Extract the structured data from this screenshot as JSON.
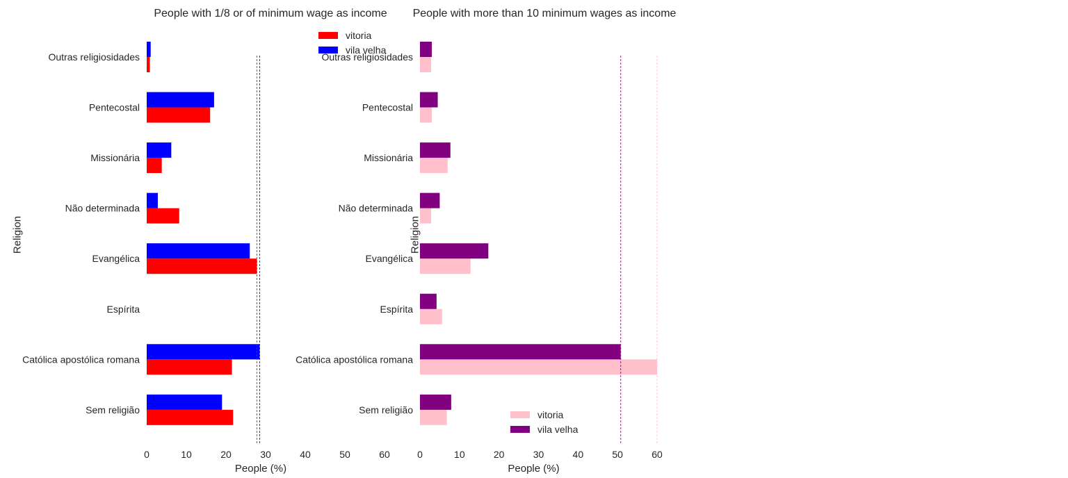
{
  "chart_data": [
    {
      "type": "bar",
      "orientation": "horizontal",
      "title": "People with 1/8 or of minimum wage as income",
      "xlabel": "People (%)",
      "ylabel": "Religion",
      "xlim": [
        0,
        60
      ],
      "xticks": [
        "0",
        "10",
        "20",
        "30",
        "40",
        "50",
        "60"
      ],
      "grid": false,
      "legend_position": "top-right",
      "categories": [
        "Outras religiosidades",
        "Pentecostal",
        "Missionária",
        "Não determinada",
        "Evangélica",
        "Espírita",
        "Católica apostólica romana",
        "Sem religião"
      ],
      "series": [
        {
          "name": "vitoria",
          "color": "#ff0000",
          "values": [
            0.8,
            16,
            3.8,
            8.2,
            27.8,
            0,
            21.5,
            21.8
          ]
        },
        {
          "name": "vila velha",
          "color": "#0000ff",
          "values": [
            1.0,
            17,
            6.2,
            2.8,
            26,
            0,
            28.5,
            19
          ]
        }
      ],
      "reference_lines": [
        {
          "series": "vitoria",
          "value": 27.8,
          "color": "#ff0000"
        },
        {
          "series": "vila velha",
          "value": 28.5,
          "color": "#0000ff"
        }
      ]
    },
    {
      "type": "bar",
      "orientation": "horizontal",
      "title": "People with more than 10 minimum wages as income",
      "xlabel": "People (%)",
      "ylabel": "Religion",
      "xlim": [
        0,
        60
      ],
      "xticks": [
        "0",
        "10",
        "20",
        "30",
        "40",
        "50",
        "60"
      ],
      "grid": false,
      "legend_position": "bottom-center",
      "categories": [
        "Outras religiosidades",
        "Pentecostal",
        "Missionária",
        "Não determinada",
        "Evangélica",
        "Espírita",
        "Católica apostólica romana",
        "Sem religião"
      ],
      "series": [
        {
          "name": "vitoria",
          "color": "#ffc0cb",
          "values": [
            2.8,
            3.0,
            7.0,
            2.8,
            12.8,
            5.6,
            60,
            6.8
          ]
        },
        {
          "name": "vila velha",
          "color": "#800080",
          "values": [
            3.0,
            4.5,
            7.7,
            5.0,
            17.3,
            4.2,
            50.8,
            7.9
          ]
        }
      ],
      "reference_lines": [
        {
          "series": "vitoria",
          "value": 60,
          "color": "#ffc0cb"
        },
        {
          "series": "vila velha",
          "value": 50.8,
          "color": "#800080"
        }
      ]
    }
  ]
}
